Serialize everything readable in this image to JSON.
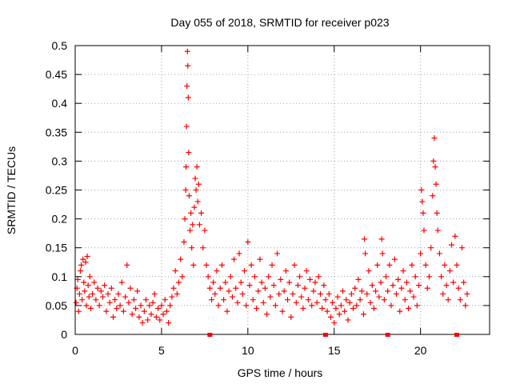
{
  "chart_data": {
    "type": "scatter",
    "title": "Day 055 of 2018, SRMTID for receiver p023",
    "xlabel": "GPS time / hours",
    "ylabel": "SRMTID / TECUs",
    "xlim": [
      0,
      24
    ],
    "ylim": [
      0,
      0.5
    ],
    "x_ticks": [
      0,
      5,
      10,
      15,
      20
    ],
    "x_tick_labels": [
      "0",
      "5",
      "10",
      "15",
      "20"
    ],
    "y_ticks": [
      0,
      0.05,
      0.1,
      0.15,
      0.2,
      0.25,
      0.3,
      0.35,
      0.4,
      0.45,
      0.5
    ],
    "y_tick_labels": [
      "0",
      "0.05",
      "0.1",
      "0.15",
      "0.2",
      "0.25",
      "0.3",
      "0.35",
      "0.4",
      "0.45",
      "0.5"
    ],
    "grid": true,
    "marker": "plus",
    "colors": {
      "series": "#ff0000",
      "axis": "#000000",
      "grid": "#a0a0a0"
    },
    "series": [
      {
        "name": "SRMTID",
        "points": [
          [
            0.05,
            0.055
          ],
          [
            0.1,
            0.08
          ],
          [
            0.15,
            0.095
          ],
          [
            0.2,
            0.04
          ],
          [
            0.25,
            0.07
          ],
          [
            0.3,
            0.11
          ],
          [
            0.35,
            0.12
          ],
          [
            0.4,
            0.06
          ],
          [
            0.45,
            0.13
          ],
          [
            0.5,
            0.09
          ],
          [
            0.55,
            0.075
          ],
          [
            0.6,
            0.125
          ],
          [
            0.65,
            0.05
          ],
          [
            0.7,
            0.135
          ],
          [
            0.75,
            0.085
          ],
          [
            0.8,
            0.065
          ],
          [
            0.85,
            0.1
          ],
          [
            0.9,
            0.045
          ],
          [
            1.0,
            0.07
          ],
          [
            1.1,
            0.09
          ],
          [
            1.2,
            0.06
          ],
          [
            1.3,
            0.08
          ],
          [
            1.4,
            0.05
          ],
          [
            1.5,
            0.075
          ],
          [
            1.6,
            0.065
          ],
          [
            1.7,
            0.085
          ],
          [
            1.8,
            0.04
          ],
          [
            1.9,
            0.07
          ],
          [
            2.0,
            0.055
          ],
          [
            2.1,
            0.08
          ],
          [
            2.2,
            0.03
          ],
          [
            2.3,
            0.06
          ],
          [
            2.4,
            0.045
          ],
          [
            2.5,
            0.07
          ],
          [
            2.6,
            0.05
          ],
          [
            2.7,
            0.09
          ],
          [
            2.8,
            0.04
          ],
          [
            2.9,
            0.065
          ],
          [
            3.0,
            0.12
          ],
          [
            3.1,
            0.055
          ],
          [
            3.2,
            0.08
          ],
          [
            3.3,
            0.035
          ],
          [
            3.4,
            0.06
          ],
          [
            3.5,
            0.045
          ],
          [
            3.6,
            0.075
          ],
          [
            3.7,
            0.03
          ],
          [
            3.8,
            0.05
          ],
          [
            3.9,
            0.02
          ],
          [
            4.0,
            0.04
          ],
          [
            4.1,
            0.06
          ],
          [
            4.2,
            0.025
          ],
          [
            4.3,
            0.05
          ],
          [
            4.4,
            0.035
          ],
          [
            4.5,
            0.055
          ],
          [
            4.6,
            0.07
          ],
          [
            4.7,
            0.03
          ],
          [
            4.8,
            0.045
          ],
          [
            4.9,
            0.025
          ],
          [
            5.0,
            0.05
          ],
          [
            5.1,
            0.035
          ],
          [
            5.2,
            0.06
          ],
          [
            5.3,
            0.04
          ],
          [
            5.4,
            0.02
          ],
          [
            5.5,
            0.05
          ],
          [
            5.6,
            0.065
          ],
          [
            5.7,
            0.08
          ],
          [
            5.8,
            0.11
          ],
          [
            5.9,
            0.07
          ],
          [
            6.0,
            0.09
          ],
          [
            6.1,
            0.13
          ],
          [
            6.2,
            0.1
          ],
          [
            6.3,
            0.16
          ],
          [
            6.35,
            0.2
          ],
          [
            6.4,
            0.25
          ],
          [
            6.42,
            0.29
          ],
          [
            6.45,
            0.36
          ],
          [
            6.47,
            0.43
          ],
          [
            6.5,
            0.49
          ],
          [
            6.52,
            0.465
          ],
          [
            6.55,
            0.41
          ],
          [
            6.57,
            0.315
          ],
          [
            6.6,
            0.24
          ],
          [
            6.65,
            0.18
          ],
          [
            6.7,
            0.21
          ],
          [
            6.75,
            0.15
          ],
          [
            6.8,
            0.19
          ],
          [
            6.85,
            0.12
          ],
          [
            6.9,
            0.22
          ],
          [
            6.95,
            0.27
          ],
          [
            7.0,
            0.25
          ],
          [
            7.05,
            0.29
          ],
          [
            7.1,
            0.23
          ],
          [
            7.15,
            0.26
          ],
          [
            7.2,
            0.19
          ],
          [
            7.3,
            0.21
          ],
          [
            7.4,
            0.15
          ],
          [
            7.5,
            0.18
          ],
          [
            7.6,
            0.12
          ],
          [
            7.7,
            0.1
          ],
          [
            7.8,
            0.08
          ],
          [
            7.9,
            0.06
          ],
          [
            8.0,
            0.09
          ],
          [
            8.1,
            0.07
          ],
          [
            8.2,
            0.11
          ],
          [
            8.3,
            0.05
          ],
          [
            8.4,
            0.08
          ],
          [
            8.5,
            0.12
          ],
          [
            8.6,
            0.06
          ],
          [
            8.7,
            0.09
          ],
          [
            8.8,
            0.04
          ],
          [
            8.9,
            0.075
          ],
          [
            9.0,
            0.1
          ],
          [
            9.1,
            0.065
          ],
          [
            9.2,
            0.13
          ],
          [
            9.3,
            0.08
          ],
          [
            9.4,
            0.055
          ],
          [
            9.5,
            0.14
          ],
          [
            9.6,
            0.09
          ],
          [
            9.7,
            0.07
          ],
          [
            9.8,
            0.11
          ],
          [
            9.9,
            0.05
          ],
          [
            10.0,
            0.16
          ],
          [
            10.1,
            0.085
          ],
          [
            10.2,
            0.12
          ],
          [
            10.3,
            0.06
          ],
          [
            10.4,
            0.1
          ],
          [
            10.5,
            0.045
          ],
          [
            10.6,
            0.075
          ],
          [
            10.7,
            0.13
          ],
          [
            10.8,
            0.09
          ],
          [
            10.9,
            0.055
          ],
          [
            11.0,
            0.08
          ],
          [
            11.1,
            0.035
          ],
          [
            11.2,
            0.1
          ],
          [
            11.3,
            0.065
          ],
          [
            11.4,
            0.12
          ],
          [
            11.5,
            0.085
          ],
          [
            11.6,
            0.05
          ],
          [
            11.7,
            0.14
          ],
          [
            11.8,
            0.07
          ],
          [
            11.9,
            0.095
          ],
          [
            12.0,
            0.04
          ],
          [
            12.1,
            0.075
          ],
          [
            12.2,
            0.11
          ],
          [
            12.3,
            0.06
          ],
          [
            12.4,
            0.09
          ],
          [
            12.5,
            0.03
          ],
          [
            12.6,
            0.07
          ],
          [
            12.7,
            0.12
          ],
          [
            12.8,
            0.055
          ],
          [
            12.9,
            0.085
          ],
          [
            13.0,
            0.1
          ],
          [
            13.1,
            0.065
          ],
          [
            13.2,
            0.045
          ],
          [
            13.3,
            0.08
          ],
          [
            13.4,
            0.11
          ],
          [
            13.5,
            0.06
          ],
          [
            13.6,
            0.095
          ],
          [
            13.7,
            0.05
          ],
          [
            13.8,
            0.075
          ],
          [
            13.9,
            0.09
          ],
          [
            14.0,
            0.055
          ],
          [
            14.1,
            0.1
          ],
          [
            14.2,
            0.07
          ],
          [
            14.3,
            0.045
          ],
          [
            14.4,
            0.085
          ],
          [
            14.5,
            0.06
          ],
          [
            14.6,
            0.04
          ],
          [
            14.7,
            0.07
          ],
          [
            14.8,
            0.03
          ],
          [
            14.9,
            0.055
          ],
          [
            15.0,
            0.02
          ],
          [
            15.1,
            0.045
          ],
          [
            15.2,
            0.065
          ],
          [
            15.3,
            0.035
          ],
          [
            15.4,
            0.05
          ],
          [
            15.5,
            0.075
          ],
          [
            15.6,
            0.04
          ],
          [
            15.7,
            0.06
          ],
          [
            15.8,
            0.025
          ],
          [
            15.9,
            0.055
          ],
          [
            16.0,
            0.07
          ],
          [
            16.1,
            0.045
          ],
          [
            16.2,
            0.08
          ],
          [
            16.3,
            0.05
          ],
          [
            16.4,
            0.095
          ],
          [
            16.5,
            0.06
          ],
          [
            16.6,
            0.075
          ],
          [
            16.7,
            0.035
          ],
          [
            16.75,
            0.165
          ],
          [
            16.8,
            0.14
          ],
          [
            16.9,
            0.07
          ],
          [
            17.0,
            0.11
          ],
          [
            17.1,
            0.055
          ],
          [
            17.2,
            0.085
          ],
          [
            17.3,
            0.045
          ],
          [
            17.4,
            0.075
          ],
          [
            17.5,
            0.12
          ],
          [
            17.6,
            0.065
          ],
          [
            17.7,
            0.09
          ],
          [
            17.75,
            0.165
          ],
          [
            17.8,
            0.14
          ],
          [
            17.9,
            0.06
          ],
          [
            18.0,
            0.1
          ],
          [
            18.1,
            0.075
          ],
          [
            18.2,
            0.12
          ],
          [
            18.3,
            0.05
          ],
          [
            18.4,
            0.085
          ],
          [
            18.5,
            0.13
          ],
          [
            18.6,
            0.07
          ],
          [
            18.7,
            0.095
          ],
          [
            18.8,
            0.04
          ],
          [
            18.9,
            0.08
          ],
          [
            19.0,
            0.11
          ],
          [
            19.1,
            0.06
          ],
          [
            19.2,
            0.09
          ],
          [
            19.3,
            0.045
          ],
          [
            19.4,
            0.075
          ],
          [
            19.5,
            0.12
          ],
          [
            19.6,
            0.065
          ],
          [
            19.7,
            0.1
          ],
          [
            19.8,
            0.05
          ],
          [
            19.9,
            0.085
          ],
          [
            20.0,
            0.14
          ],
          [
            20.05,
            0.25
          ],
          [
            20.1,
            0.23
          ],
          [
            20.15,
            0.21
          ],
          [
            20.2,
            0.18
          ],
          [
            20.3,
            0.12
          ],
          [
            20.4,
            0.08
          ],
          [
            20.5,
            0.1
          ],
          [
            20.6,
            0.15
          ],
          [
            20.7,
            0.24
          ],
          [
            20.75,
            0.3
          ],
          [
            20.8,
            0.34
          ],
          [
            20.85,
            0.29
          ],
          [
            20.9,
            0.26
          ],
          [
            20.95,
            0.21
          ],
          [
            21.0,
            0.18
          ],
          [
            21.1,
            0.14
          ],
          [
            21.2,
            0.1
          ],
          [
            21.3,
            0.07
          ],
          [
            21.4,
            0.12
          ],
          [
            21.5,
            0.085
          ],
          [
            21.6,
            0.06
          ],
          [
            21.7,
            0.11
          ],
          [
            21.8,
            0.155
          ],
          [
            21.9,
            0.09
          ],
          [
            22.0,
            0.17
          ],
          [
            22.1,
            0.12
          ],
          [
            22.2,
            0.08
          ],
          [
            22.3,
            0.06
          ],
          [
            22.4,
            0.15
          ],
          [
            22.5,
            0.09
          ],
          [
            22.6,
            0.05
          ],
          [
            22.7,
            0.07
          ]
        ]
      }
    ],
    "x_axis_markers": [
      7.8,
      14.5,
      18.1,
      22.1
    ]
  }
}
